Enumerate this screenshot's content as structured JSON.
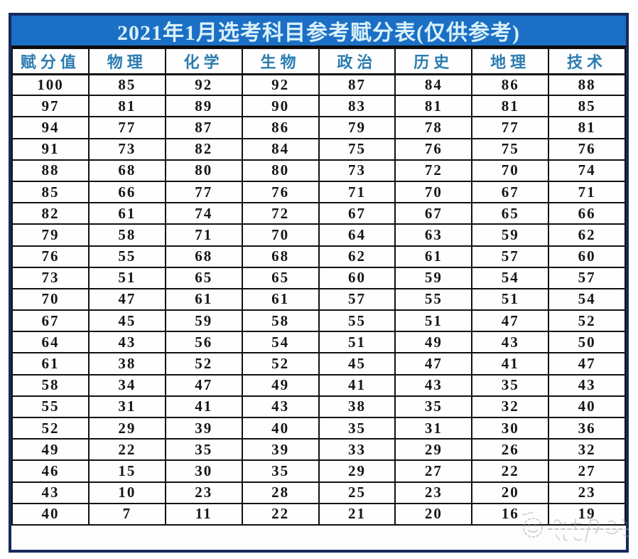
{
  "title": "2021年1月选考科目参考赋分表(仅供参考)",
  "table": {
    "headers": [
      "赋分值",
      "物理",
      "化学",
      "生物",
      "政治",
      "历史",
      "地理",
      "技术"
    ],
    "rows": [
      [
        100,
        85,
        92,
        92,
        87,
        84,
        86,
        88
      ],
      [
        97,
        81,
        89,
        90,
        83,
        81,
        81,
        85
      ],
      [
        94,
        77,
        87,
        86,
        79,
        78,
        77,
        81
      ],
      [
        91,
        73,
        82,
        84,
        75,
        76,
        75,
        76
      ],
      [
        88,
        68,
        80,
        80,
        73,
        72,
        70,
        74
      ],
      [
        85,
        66,
        77,
        76,
        71,
        70,
        67,
        71
      ],
      [
        82,
        61,
        74,
        72,
        67,
        67,
        65,
        66
      ],
      [
        79,
        58,
        71,
        70,
        64,
        63,
        59,
        62
      ],
      [
        76,
        55,
        68,
        68,
        62,
        61,
        57,
        60
      ],
      [
        73,
        51,
        65,
        65,
        60,
        59,
        54,
        57
      ],
      [
        70,
        47,
        61,
        61,
        57,
        55,
        51,
        54
      ],
      [
        67,
        45,
        59,
        58,
        55,
        51,
        47,
        52
      ],
      [
        64,
        43,
        56,
        54,
        51,
        49,
        43,
        50
      ],
      [
        61,
        38,
        52,
        52,
        45,
        47,
        41,
        47
      ],
      [
        58,
        34,
        47,
        49,
        41,
        43,
        35,
        43
      ],
      [
        55,
        31,
        41,
        43,
        38,
        35,
        32,
        40
      ],
      [
        52,
        29,
        39,
        40,
        35,
        31,
        30,
        36
      ],
      [
        49,
        22,
        35,
        39,
        33,
        29,
        26,
        32
      ],
      [
        46,
        15,
        30,
        35,
        29,
        27,
        22,
        27
      ],
      [
        43,
        10,
        23,
        28,
        25,
        23,
        20,
        23
      ],
      [
        40,
        7,
        11,
        22,
        21,
        20,
        16,
        19
      ]
    ]
  },
  "colors": {
    "title_bg": "#1b6fc4",
    "title_text": "#d9f1fa",
    "header_text": "#2b7cb0",
    "frame_border": "#15295c",
    "grid_border": "#111111",
    "cell_text": "#161616"
  }
}
